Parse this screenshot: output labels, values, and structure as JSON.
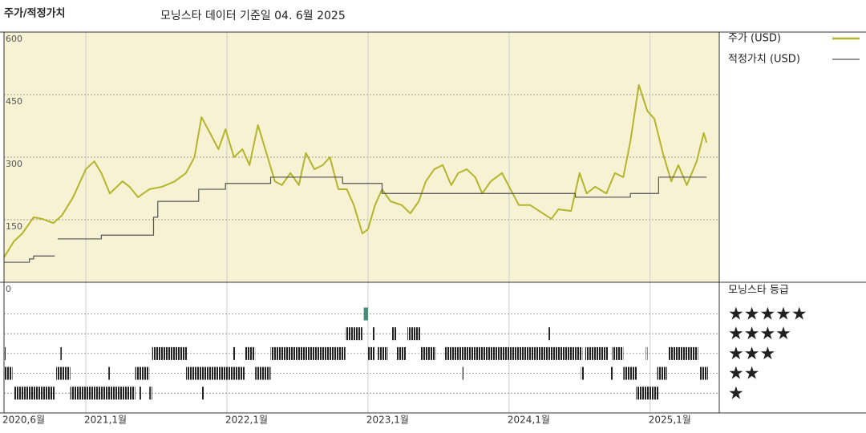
{
  "chart_data": [
    {
      "type": "line",
      "title": "주가/적정가치",
      "subtitle": "모닝스타 데이터 기준일 04. 6월 2025",
      "xlim": [
        2020.42,
        2025.49
      ],
      "xticks": [
        {
          "value": 2020.42,
          "label": "2020,6월"
        },
        {
          "value": 2021,
          "label": "2021,1월"
        },
        {
          "value": 2022,
          "label": "2022,1월"
        },
        {
          "value": 2023,
          "label": "2023,1월"
        },
        {
          "value": 2024,
          "label": "2024,1월"
        },
        {
          "value": 2025,
          "label": "2025,1월"
        }
      ],
      "ylim": [
        0,
        600
      ],
      "yticks": [
        0,
        150,
        300,
        450,
        600
      ],
      "grid": true,
      "background": "#f6f2d3",
      "series": [
        {
          "name": "주가 (USD)",
          "color": "#b3b52a",
          "x": [
            2020.42,
            2020.49,
            2020.55,
            2020.63,
            2020.69,
            2020.77,
            2020.83,
            2020.91,
            2021.0,
            2021.06,
            2021.11,
            2021.17,
            2021.26,
            2021.31,
            2021.37,
            2021.45,
            2021.54,
            2021.63,
            2021.71,
            2021.77,
            2021.82,
            2021.88,
            2021.94,
            2021.99,
            2022.05,
            2022.11,
            2022.16,
            2022.22,
            2022.28,
            2022.34,
            2022.39,
            2022.45,
            2022.51,
            2022.56,
            2022.62,
            2022.68,
            2022.73,
            2022.79,
            2022.85,
            2022.9,
            2022.96,
            2023.0,
            2023.05,
            2023.1,
            2023.16,
            2023.24,
            2023.3,
            2023.36,
            2023.41,
            2023.47,
            2023.53,
            2023.59,
            2023.64,
            2023.7,
            2023.76,
            2023.81,
            2023.87,
            2023.95,
            2024.01,
            2024.07,
            2024.15,
            2024.24,
            2024.3,
            2024.35,
            2024.44,
            2024.5,
            2024.55,
            2024.61,
            2024.69,
            2024.75,
            2024.81,
            2024.86,
            2024.92,
            2024.98,
            2025.03,
            2025.09,
            2025.15,
            2025.2,
            2025.26,
            2025.33,
            2025.38,
            2025.4
          ],
          "values": [
            60,
            98,
            117,
            156,
            152,
            142,
            160,
            204,
            271,
            290,
            262,
            213,
            242,
            229,
            204,
            223,
            229,
            242,
            262,
            300,
            396,
            358,
            319,
            367,
            300,
            319,
            281,
            377,
            310,
            242,
            233,
            262,
            233,
            310,
            271,
            281,
            300,
            223,
            223,
            185,
            117,
            127,
            185,
            223,
            194,
            185,
            165,
            194,
            242,
            271,
            281,
            233,
            262,
            271,
            252,
            213,
            242,
            262,
            223,
            185,
            185,
            165,
            152,
            175,
            171,
            262,
            213,
            229,
            213,
            262,
            252,
            338,
            473,
            411,
            392,
            310,
            242,
            281,
            233,
            290,
            358,
            335
          ]
        },
        {
          "name": "적정가치 (USD)",
          "color": "#555555",
          "step": true,
          "x": [
            2020.42,
            2020.6,
            2020.63,
            2020.78,
            2020.79,
            2020.8,
            2021.11,
            2021.48,
            2021.51,
            2021.8,
            2021.99,
            2022.31,
            2022.82,
            2023.1,
            2024.47,
            2024.86,
            2025.06,
            2025.4
          ],
          "values": [
            48,
            56,
            63,
            63,
            null,
            104,
            113,
            156,
            194,
            223,
            237,
            252,
            237,
            213,
            204,
            213,
            252,
            252
          ]
        }
      ]
    },
    {
      "type": "timeline",
      "title": "모닝스타 등급",
      "color": "#222222",
      "ylim": [
        0,
        6.6
      ],
      "yticks": [
        {
          "value": 1,
          "label": "★"
        },
        {
          "value": 2,
          "label": "★★"
        },
        {
          "value": 3,
          "label": "★★★"
        },
        {
          "value": 4,
          "label": "★★★★"
        },
        {
          "value": 5,
          "label": "★★★★★"
        }
      ],
      "segments": [
        {
          "x": [
            2022.97,
            2023.0
          ],
          "value": 5,
          "color": "#4a8a78"
        },
        {
          "x": [
            2022.84,
            2022.96
          ],
          "value": 4
        },
        {
          "x": [
            2023.03,
            2023.05
          ],
          "value": 4
        },
        {
          "x": [
            2023.17,
            2023.2
          ],
          "value": 4
        },
        {
          "x": [
            2023.28,
            2023.37
          ],
          "value": 4
        },
        {
          "x": [
            2024.28,
            2024.29
          ],
          "value": 4
        },
        {
          "x": [
            2020.42,
            2020.43
          ],
          "value": 3
        },
        {
          "x": [
            2020.82,
            2020.83
          ],
          "value": 3
        },
        {
          "x": [
            2021.47,
            2021.72
          ],
          "value": 3
        },
        {
          "x": [
            2022.04,
            2022.06
          ],
          "value": 3
        },
        {
          "x": [
            2022.13,
            2022.2
          ],
          "value": 3
        },
        {
          "x": [
            2022.31,
            2022.84
          ],
          "value": 3
        },
        {
          "x": [
            2023.0,
            2023.05
          ],
          "value": 3
        },
        {
          "x": [
            2023.07,
            2023.14
          ],
          "value": 3
        },
        {
          "x": [
            2023.2,
            2023.27
          ],
          "value": 3
        },
        {
          "x": [
            2023.37,
            2023.48
          ],
          "value": 3
        },
        {
          "x": [
            2023.54,
            2024.52
          ],
          "value": 3
        },
        {
          "x": [
            2024.54,
            2024.7
          ],
          "value": 3
        },
        {
          "x": [
            2024.73,
            2024.81
          ],
          "value": 3
        },
        {
          "x": [
            2024.97,
            2024.98
          ],
          "value": 3
        },
        {
          "x": [
            2025.13,
            2025.34
          ],
          "value": 3
        },
        {
          "x": [
            2020.42,
            2020.48
          ],
          "value": 2
        },
        {
          "x": [
            2020.79,
            2020.89
          ],
          "value": 2
        },
        {
          "x": [
            2021.16,
            2021.17
          ],
          "value": 2
        },
        {
          "x": [
            2021.35,
            2021.45
          ],
          "value": 2
        },
        {
          "x": [
            2021.71,
            2022.13
          ],
          "value": 2
        },
        {
          "x": [
            2022.2,
            2022.31
          ],
          "value": 2
        },
        {
          "x": [
            2023.67,
            2023.68
          ],
          "value": 2
        },
        {
          "x": [
            2024.51,
            2024.53
          ],
          "value": 2
        },
        {
          "x": [
            2024.72,
            2024.74
          ],
          "value": 2
        },
        {
          "x": [
            2024.81,
            2024.91
          ],
          "value": 2
        },
        {
          "x": [
            2025.05,
            2025.12
          ],
          "value": 2
        },
        {
          "x": [
            2025.35,
            2025.41
          ],
          "value": 2
        },
        {
          "x": [
            2020.49,
            2020.78
          ],
          "value": 1
        },
        {
          "x": [
            2020.89,
            2021.35
          ],
          "value": 1
        },
        {
          "x": [
            2021.38,
            2021.39
          ],
          "value": 1
        },
        {
          "x": [
            2021.45,
            2021.47
          ],
          "value": 1
        },
        {
          "x": [
            2021.82,
            2021.84
          ],
          "value": 1
        },
        {
          "x": [
            2024.9,
            2025.06
          ],
          "value": 1
        }
      ]
    }
  ]
}
